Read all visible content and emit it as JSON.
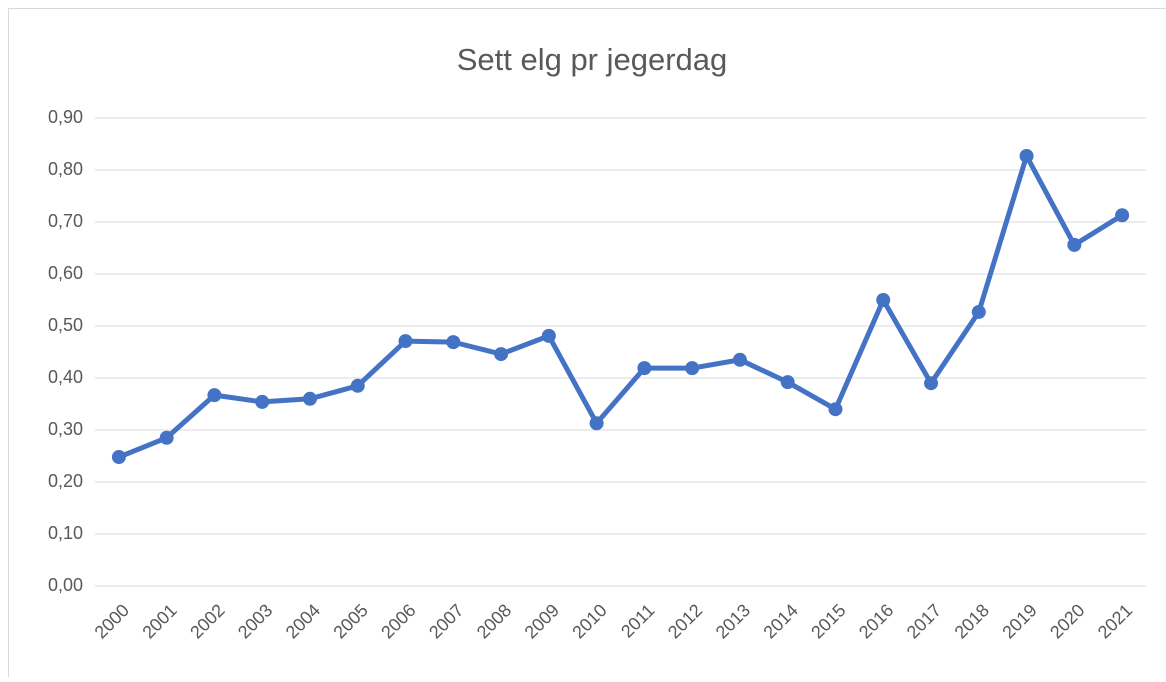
{
  "chart_data": {
    "type": "line",
    "title": "Sett elg pr jegerdag",
    "categories": [
      "2000",
      "2001",
      "2002",
      "2003",
      "2004",
      "2005",
      "2006",
      "2007",
      "2008",
      "2009",
      "2010",
      "2011",
      "2012",
      "2013",
      "2014",
      "2015",
      "2016",
      "2017",
      "2018",
      "2019",
      "2020",
      "2021"
    ],
    "series": [
      {
        "color": "#4472c4",
        "values": [
          0.248,
          0.285,
          0.367,
          0.354,
          0.36,
          0.385,
          0.471,
          0.469,
          0.446,
          0.481,
          0.313,
          0.419,
          0.419,
          0.435,
          0.392,
          0.34,
          0.55,
          0.39,
          0.527,
          0.827,
          0.656,
          0.713
        ]
      }
    ],
    "ylim": [
      0,
      0.9
    ],
    "yticks": [
      {
        "value": 0,
        "label": "0,00"
      },
      {
        "value": 0.1,
        "label": "0,10"
      },
      {
        "value": 0.2,
        "label": "0,20"
      },
      {
        "value": 0.3,
        "label": "0,30"
      },
      {
        "value": 0.4,
        "label": "0,40"
      },
      {
        "value": 0.5,
        "label": "0,50"
      },
      {
        "value": 0.6,
        "label": "0,60"
      },
      {
        "value": 0.7,
        "label": "0,70"
      },
      {
        "value": 0.8,
        "label": "0,80"
      },
      {
        "value": 0.9,
        "label": "0,90"
      }
    ],
    "grid": true
  }
}
